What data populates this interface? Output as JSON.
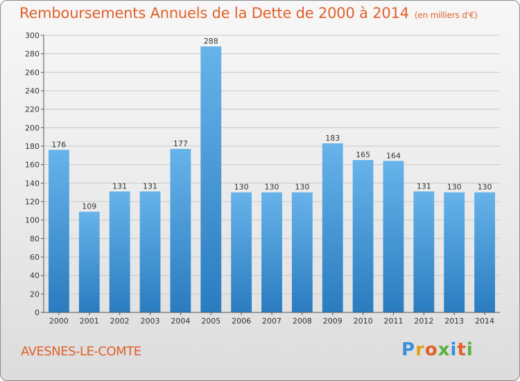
{
  "header": {
    "title": "Remboursements Annuels de la Dette de 2000 à 2014",
    "unit": "(en milliers d'€)"
  },
  "commune": "AVESNES-LE-COMTE",
  "logo": {
    "letters": [
      "P",
      "r",
      "o",
      "x",
      "i",
      "t",
      "i"
    ],
    "colors": [
      "#3a8fd9",
      "#e3a21c",
      "#e0602a",
      "#5ab23c",
      "#3a8fd9",
      "#e0602a",
      "#5ab23c"
    ]
  },
  "colors": {
    "bar_light": "#67b3ea",
    "bar_dark": "#2a7cc0",
    "grid": "#c8c8c8",
    "title": "#e0602a"
  },
  "chart_data": {
    "type": "bar",
    "title": "Remboursements Annuels de la Dette de 2000 à 2014",
    "subtitle": "(en milliers d'€)",
    "categories": [
      "2000",
      "2001",
      "2002",
      "2003",
      "2004",
      "2005",
      "2006",
      "2007",
      "2008",
      "2009",
      "2010",
      "2011",
      "2012",
      "2013",
      "2014"
    ],
    "values": [
      176,
      109,
      131,
      131,
      177,
      288,
      130,
      130,
      130,
      183,
      165,
      164,
      131,
      130,
      130
    ],
    "ylim": [
      0,
      300
    ],
    "ytick_step": 20,
    "grid": true,
    "data_labels": true
  }
}
